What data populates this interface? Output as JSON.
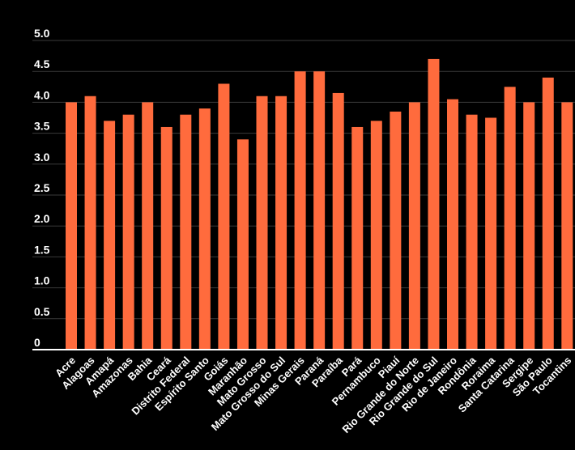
{
  "colors": {
    "background": "#000000",
    "bar": "#ff6b3d",
    "grid": "#3a3a3a",
    "axis": "#ffffff",
    "text": "#ffffff"
  },
  "chart_data": {
    "type": "bar",
    "title": "",
    "xlabel": "",
    "ylabel": "",
    "ylim": [
      0,
      5.0
    ],
    "yticks": [
      "0",
      "0.5",
      "1.0",
      "1.5",
      "2.0",
      "2.5",
      "3.0",
      "3.5",
      "4.0",
      "4.5",
      "5.0"
    ],
    "ytick_values": [
      0,
      0.5,
      1.0,
      1.5,
      2.0,
      2.5,
      3.0,
      3.5,
      4.0,
      4.5,
      5.0
    ],
    "grid": true,
    "legend": "none",
    "categories": [
      "Acre",
      "Alagoas",
      "Amapá",
      "Amazonas",
      "Bahia",
      "Ceará",
      "Distrito Federal",
      "Espírito Santo",
      "Goiás",
      "Maranhão",
      "Mato Grosso",
      "Mato Grosso do Sul",
      "Minas Gerais",
      "Paraná",
      "Paraíba",
      "Pará",
      "Pernambuco",
      "Piauí",
      "Rio Grande do Norte",
      "Rio Grande do Sul",
      "Rio de Janeiro",
      "Rondônia",
      "Roraima",
      "Santa Catarina",
      "Sergipe",
      "São Paulo",
      "Tocantins"
    ],
    "values": [
      4.0,
      4.1,
      3.7,
      3.8,
      4.0,
      3.6,
      3.8,
      3.9,
      4.3,
      3.4,
      4.1,
      4.1,
      4.5,
      4.5,
      4.15,
      3.6,
      3.7,
      3.85,
      4.0,
      4.7,
      4.05,
      3.8,
      3.75,
      4.25,
      4.0,
      4.4,
      4.0
    ]
  }
}
